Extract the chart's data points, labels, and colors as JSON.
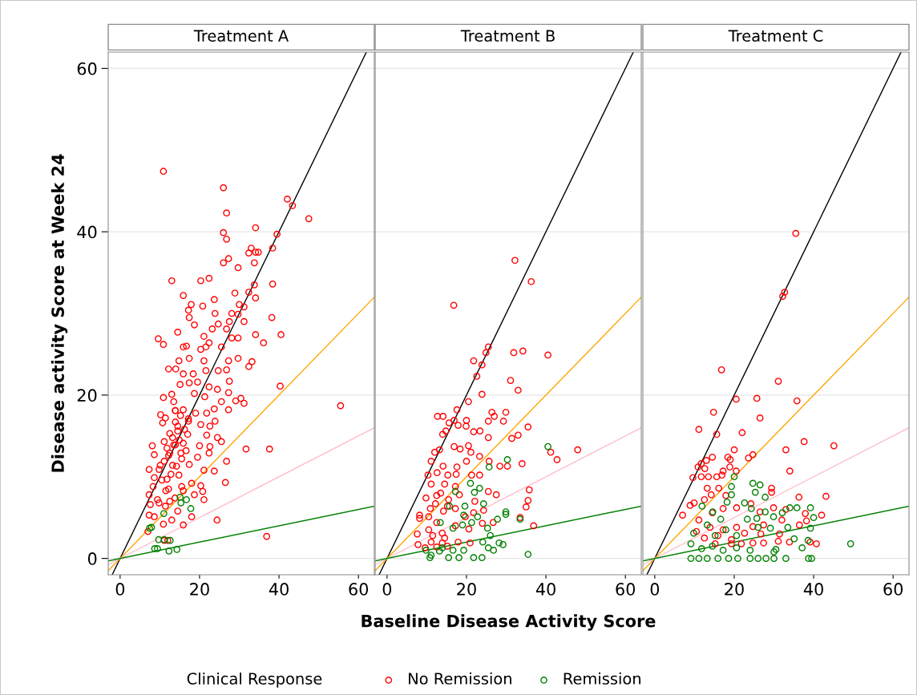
{
  "chart_data": [
    {
      "type": "scatter",
      "title": "Treatment A",
      "ylabel": "Disease activity Score at Week 24",
      "xlim": [
        -3,
        64
      ],
      "ylim": [
        -2,
        62
      ],
      "xticks": [
        0,
        20,
        40,
        60
      ],
      "yticks": [
        0,
        20,
        40,
        60
      ],
      "grid": "y",
      "marker": "circle",
      "legend": "bottom",
      "legend_title": "Clinical Response",
      "series": [
        {
          "name": "No Remission",
          "color": "#ff0000",
          "x": [
            10.9,
            26.0,
            42.1,
            43.4,
            47.5,
            26.8,
            34.1,
            26.0,
            26.8,
            39.5,
            38.4,
            33,
            32.4,
            34.1,
            34.8,
            26,
            27.3,
            33.8,
            29.7,
            13.0,
            20.3,
            22.4,
            33.8,
            38.4,
            15.9,
            28.9,
            32.4,
            34.1,
            23.7,
            17.9,
            20.8,
            17.2,
            17.4,
            30,
            31.2,
            29.7,
            23.9,
            28.1,
            27.5,
            31.2,
            38.2,
            18.7,
            23.2,
            24.7,
            26.8,
            14.5,
            34.1,
            40.5,
            9.6,
            10.9,
            21.1,
            28.1,
            29.7,
            36.1,
            15.9,
            16.7,
            20.3,
            21.6,
            22.4,
            25.5,
            14.8,
            17.4,
            21.1,
            27.3,
            29.7,
            33.2,
            32.4,
            12.2,
            14,
            15.9,
            18.4,
            21.6,
            24.7,
            26.8,
            15.1,
            17.4,
            19.5,
            22.4,
            24.5,
            27.5,
            40.3,
            10.9,
            13.0,
            13.5,
            18.7,
            21.3,
            25.5,
            27.3,
            29.1,
            30.4,
            31.2,
            55.5,
            27.3,
            10.2,
            11.4,
            13.9,
            15.9,
            19,
            21.8,
            23.7,
            10.7,
            13.9,
            17.2,
            20.3,
            22.6,
            23.9,
            12.5,
            14.5,
            17,
            21.8,
            24.5,
            8.1,
            11.1,
            13.5,
            15.9,
            20,
            22.6,
            25.5,
            31.7,
            37.6,
            8.6,
            12.2,
            15.3,
            19.5,
            22.4,
            7.3,
            10.1,
            13.2,
            17.4,
            21.1,
            26.8,
            23.7,
            8.6,
            11.8,
            14.8,
            18,
            26.5,
            8.3,
            12.2,
            15.5,
            20.3,
            7.3,
            9.4,
            13.8,
            18.7,
            20.8,
            21.1,
            7.6,
            9.8,
            11.4,
            14.5,
            18,
            7.3,
            8.6,
            10.9,
            13,
            15.9,
            7.0,
            24.4,
            36.9,
            11.1,
            12,
            9.8,
            11.1,
            12.5,
            13.9,
            13.2,
            14.5,
            15.2,
            13.9,
            11.8,
            10.5,
            11.5,
            12.8,
            14.2,
            15.5,
            16.6,
            14.9,
            16.2,
            17.2,
            15.9,
            12.5
          ],
          "values": [
            47.4,
            45.4,
            44.0,
            43.2,
            41.6,
            42.3,
            40.5,
            39.9,
            39.1,
            39.7,
            38.0,
            38,
            37.4,
            37.5,
            37.5,
            36.2,
            36.7,
            36.2,
            35.6,
            34.0,
            34.0,
            34.3,
            33.5,
            33.6,
            32.2,
            32.5,
            32.6,
            31.9,
            31.7,
            31.1,
            30.9,
            30.4,
            29.5,
            31.1,
            30.8,
            29.9,
            30.0,
            30.0,
            29.0,
            29.0,
            29.5,
            28.6,
            28.1,
            28.7,
            28.1,
            27.7,
            27.4,
            27.4,
            26.9,
            26.2,
            27.2,
            27.0,
            27.0,
            26.4,
            25.9,
            26.0,
            25.6,
            25.9,
            26.4,
            25.9,
            24.2,
            24.5,
            24.2,
            24.2,
            24.5,
            24.1,
            23.5,
            23.2,
            23.2,
            22.6,
            22.6,
            23.0,
            23.0,
            23.1,
            21.3,
            21.5,
            21.6,
            21.0,
            20.7,
            21.7,
            21.1,
            19.7,
            20.1,
            19.2,
            20.2,
            19.8,
            19.2,
            20.3,
            19.3,
            19.6,
            19.0,
            18.7,
            18.2,
            17.6,
            17.2,
            18.1,
            18.2,
            17.8,
            17.8,
            18.3,
            16.6,
            16.7,
            16.8,
            16.4,
            16.2,
            16.8,
            15.3,
            15.6,
            15.2,
            15.1,
            14.8,
            13.8,
            14.3,
            13.9,
            14.1,
            13.8,
            13.7,
            14.3,
            13.4,
            13.4,
            12.7,
            12.6,
            12.9,
            12.4,
            12.9,
            10.9,
            11.4,
            11.4,
            11.5,
            10.8,
            11.9,
            10.7,
            9.9,
            9.7,
            10.2,
            9.2,
            9.3,
            8.8,
            8.5,
            8.8,
            8.9,
            7.8,
            7.2,
            7.4,
            7.8,
            8.2,
            7.2,
            6.6,
            6.8,
            6.4,
            5.8,
            5.1,
            5.3,
            5.1,
            4.2,
            4.7,
            4.1,
            3.3,
            4.7,
            2.7,
            2.2,
            2.2,
            10.9,
            11.9,
            12.9,
            13.9,
            14.8,
            16.2,
            17.5,
            18.1,
            13.5,
            9.6,
            8.3,
            10.3,
            11.3,
            12.2,
            13.2,
            14.5,
            15.8,
            17.1,
            8.3,
            7.0
          ]
        },
        {
          "name": "Remission",
          "color": "#008000",
          "x": [
            7.4,
            7.9,
            11.0,
            15.1,
            15.3,
            16.7,
            17.8,
            9.7,
            11.1,
            12.6,
            8.7,
            9.4,
            12.3,
            14.3
          ],
          "values": [
            3.7,
            3.8,
            5.5,
            7.5,
            6.8,
            7.2,
            6.1,
            2.3,
            2.3,
            2.2,
            1.2,
            1.2,
            0.9,
            1.1
          ]
        },
        {
          "type": "line",
          "color": "#000000",
          "marker": "none",
          "x": [
            -2,
            62
          ],
          "values": [
            -2,
            62
          ]
        },
        {
          "type": "line",
          "color": "#ffa500",
          "marker": "none",
          "x": [
            -3,
            64
          ],
          "values": [
            -1.5,
            32
          ]
        },
        {
          "type": "line",
          "color": "#ffc0cb",
          "marker": "none",
          "x": [
            -3,
            64
          ],
          "values": [
            -0.75,
            16
          ]
        },
        {
          "type": "line",
          "color": "#008000",
          "marker": "none",
          "x": [
            -3,
            64
          ],
          "values": [
            -0.3,
            6.4
          ]
        }
      ]
    },
    {
      "type": "scatter",
      "title": "Treatment B",
      "xlabel": "Baseline Disease Activity Score",
      "xlim": [
        -3,
        64
      ],
      "ylim": [
        -2,
        62
      ],
      "xticks": [
        0,
        20,
        40,
        60
      ],
      "yticks": [
        0,
        20,
        40,
        60
      ],
      "tick_labels": "x",
      "grid": "y",
      "marker": "circle",
      "series": [
        {
          "color": "#ff0000",
          "x": [
            32.2,
            36.3,
            16.8,
            25.5,
            24.9,
            31.9,
            34.2,
            40.5,
            21.8,
            23.9,
            22.6,
            31.1,
            33,
            23.9,
            20.5,
            17.6,
            26.4,
            29.9,
            27,
            12.7,
            14.1,
            15.6,
            16.9,
            20,
            17.9,
            19.9,
            25.5,
            29.3,
            35.5,
            14.8,
            14,
            21.8,
            23.4,
            25.5,
            31.4,
            33,
            12,
            13.2,
            16.9,
            18.4,
            20.5,
            21.1,
            23.3,
            41.2,
            42.8,
            48,
            25.7,
            28.4,
            30.3,
            34,
            11.1,
            14.1,
            17.6,
            20,
            10.3,
            12.6,
            15.3,
            17.4,
            23.3,
            11.1,
            14.5,
            17.2,
            21.3,
            35.8,
            35.5,
            35,
            9.8,
            12.5,
            15.5,
            18.2,
            22.1,
            25.5,
            27.5,
            8.2,
            8.2,
            10.9,
            14.2,
            17.2,
            19.7,
            21.8,
            24.3,
            33.5,
            36.9,
            7.6,
            10.5,
            13.9,
            17.2,
            20.6,
            24,
            26.7,
            7.8,
            11.1,
            13.9,
            17.9,
            20.9,
            9.6,
            12.5,
            15.2,
            10.5,
            12.2,
            13.5,
            15.2,
            12.5,
            11.5,
            14.5
          ],
          "values": [
            36.5,
            33.9,
            31.0,
            25.9,
            25.2,
            25.2,
            25.4,
            24.9,
            24.2,
            23.7,
            22.3,
            21.8,
            20.6,
            20.1,
            19.2,
            18.2,
            17.9,
            17.9,
            17.4,
            17.4,
            17.4,
            16.6,
            16.9,
            16.9,
            16.3,
            16.2,
            16.8,
            16.8,
            16.1,
            15.6,
            15.2,
            15.5,
            15.6,
            14.8,
            14.7,
            15.1,
            13,
            13.3,
            13.7,
            13.4,
            13.8,
            13,
            12.5,
            13,
            12.1,
            13.3,
            11.9,
            11.3,
            11.3,
            11.6,
            11.9,
            11.3,
            11.2,
            11.9,
            10.2,
            10.5,
            10.2,
            10.3,
            10.2,
            9.1,
            9.1,
            8.8,
            10.2,
            8.4,
            7.1,
            6.3,
            7.4,
            7.7,
            7.2,
            7.8,
            7,
            8.2,
            7.8,
            5.3,
            4.9,
            6.1,
            5.8,
            6.1,
            5.1,
            5.6,
            5.9,
            5,
            4,
            3,
            3.5,
            3.1,
            4,
            3.6,
            4.3,
            4.4,
            1.7,
            2,
            1.9,
            2,
            1.9,
            1.3,
            1.4,
            1.5,
            5.1,
            6.7,
            8,
            6.4,
            4.4,
            2.8,
            2.5
          ]
        },
        {
          "color": "#008000",
          "x": [
            40.5,
            30.3,
            25.7,
            21,
            23.3,
            22,
            17.2,
            15.7,
            19.6,
            24.3,
            29.9,
            29.9,
            27.8,
            33.5,
            13.4,
            19.3,
            21.3,
            22.8,
            16.6,
            19,
            25.3,
            26,
            24.1,
            25.5,
            26.8,
            28.2,
            29.2,
            9.8,
            11.1,
            13.2,
            15.5,
            18.1,
            21.8,
            23.9,
            35.5,
            19.3,
            16.6,
            13.9,
            10.8
          ],
          "values": [
            13.7,
            12.1,
            11.2,
            9.2,
            8.6,
            8.1,
            8.2,
            6.4,
            6.4,
            6.7,
            5.7,
            5.4,
            4.8,
            4.8,
            4.4,
            5.3,
            4.4,
            5.1,
            3.7,
            4.1,
            3.7,
            2.8,
            2,
            1.3,
            1,
            1.9,
            1.7,
            1,
            0.4,
            0.9,
            0.1,
            0.1,
            0.1,
            0.1,
            0.5,
            1,
            1,
            1.3,
            0.1
          ]
        },
        {
          "type": "line",
          "color": "#000000",
          "marker": "none",
          "x": [
            -2,
            62
          ],
          "values": [
            -2,
            62
          ]
        },
        {
          "type": "line",
          "color": "#ffa500",
          "marker": "none",
          "x": [
            -3,
            64
          ],
          "values": [
            -1.5,
            32
          ]
        },
        {
          "type": "line",
          "color": "#ffc0cb",
          "marker": "none",
          "x": [
            -3,
            64
          ],
          "values": [
            -0.75,
            16
          ]
        },
        {
          "type": "line",
          "color": "#008000",
          "marker": "none",
          "x": [
            -3,
            64
          ],
          "values": [
            -0.3,
            6.4
          ]
        }
      ]
    },
    {
      "type": "scatter",
      "title": "Treatment C",
      "xlim": [
        -3,
        64
      ],
      "ylim": [
        -2,
        62
      ],
      "xticks": [
        0,
        20,
        40,
        60
      ],
      "yticks": [
        0,
        20,
        40,
        60
      ],
      "tick_labels": "x",
      "grid": "y",
      "marker": "circle",
      "series": [
        {
          "color": "#ff0000",
          "x": [
            35.5,
            32.7,
            32.2,
            16.8,
            31.1,
            20.5,
            25.7,
            35.8,
            14.8,
            26.5,
            11.1,
            15.6,
            22,
            37.6,
            45.1,
            33,
            20,
            24.7,
            23.6,
            11.7,
            13,
            14.5,
            18.4,
            19,
            10.9,
            12.6,
            18.9,
            17.2,
            20.5,
            9.6,
            11.7,
            13.5,
            15.6,
            16.9,
            34,
            13.2,
            16.1,
            29.4,
            29.4,
            36.3,
            43.1,
            8.9,
            9.9,
            12.5,
            14.2,
            17.9,
            7,
            11.1,
            14.5,
            17.2,
            20.6,
            24.2,
            26.5,
            29.9,
            33,
            37.9,
            42,
            32,
            36.4,
            38.2,
            10.5,
            13.9,
            17.2,
            20.6,
            24.7,
            27.4,
            12.5,
            15.9,
            19.3,
            22.6,
            26.7,
            31.4,
            24.7,
            27.4,
            31.1,
            33.9,
            39.1,
            40.7,
            15.2,
            19.3,
            21.8
          ],
          "values": [
            39.8,
            32.6,
            32.1,
            23.1,
            21.7,
            19.5,
            19.6,
            19.3,
            17.9,
            17.2,
            15.8,
            15.2,
            15.4,
            14.3,
            13.8,
            13.3,
            13.3,
            12.7,
            12.3,
            11.6,
            12,
            12.4,
            12.4,
            12.1,
            11.2,
            11,
            11.2,
            10.7,
            10.7,
            9.9,
            10,
            10,
            10,
            10.2,
            10.7,
            8.6,
            8.6,
            8.6,
            8.1,
            7.5,
            7.6,
            6.5,
            6.8,
            7.2,
            7.8,
            7.7,
            5.3,
            4.7,
            5.6,
            6.1,
            6.2,
            6.7,
            5.7,
            6.2,
            6,
            5.5,
            5.3,
            4.7,
            4.1,
            4.6,
            3.3,
            3.8,
            3.5,
            3.8,
            3.9,
            4.1,
            2.5,
            2.8,
            2.3,
            3.1,
            3,
            3,
            1.9,
            1.9,
            2.1,
            2,
            2,
            1.8,
            1.8,
            1.8,
            1.8
          ]
        },
        {
          "color": "#008000",
          "x": [
            20,
            24.7,
            26.5,
            19.3,
            25.3,
            27.8,
            19.3,
            18.2,
            22.6,
            24.3,
            34,
            35.8,
            39.2,
            27.8,
            29.9,
            32.1,
            40,
            25.7,
            29.1,
            33.5,
            39.2,
            35.1,
            37.1,
            38.6,
            49.3,
            9.8,
            13.2,
            16.6,
            14.6,
            11.9,
            9.1,
            11.8,
            14.5,
            17.2,
            20.6,
            24,
            9.1,
            11.1,
            13.2,
            15.9,
            18.6,
            20.9,
            24,
            26,
            28,
            30,
            33,
            38.7,
            39.5,
            30,
            30.5,
            15.2,
            17.9,
            20.6,
            23.3,
            26
          ],
          "values": [
            10,
            9.2,
            9,
            8.8,
            8.1,
            7.5,
            7.8,
            6.9,
            6.8,
            6.1,
            6.2,
            6.2,
            6.2,
            5.7,
            5.1,
            5.6,
            5,
            4.9,
            3.7,
            3.8,
            3.7,
            2.4,
            1.3,
            2.2,
            1.8,
            3.1,
            4.1,
            4.8,
            5.7,
            6.4,
            1.8,
            1.2,
            1.5,
            1,
            1.3,
            1,
            0,
            0,
            0,
            0,
            0,
            0,
            0,
            0,
            0,
            0,
            0,
            0,
            0,
            0.8,
            1.1,
            2.8,
            3.5,
            2.8,
            4.8,
            3.8
          ]
        },
        {
          "type": "line",
          "color": "#000000",
          "marker": "none",
          "x": [
            -2,
            62
          ],
          "values": [
            -2,
            62
          ]
        },
        {
          "type": "line",
          "color": "#ffa500",
          "marker": "none",
          "x": [
            -3,
            64
          ],
          "values": [
            -1.5,
            32
          ]
        },
        {
          "type": "line",
          "color": "#ffc0cb",
          "marker": "none",
          "x": [
            -3,
            64
          ],
          "values": [
            -0.75,
            16
          ]
        },
        {
          "type": "line",
          "color": "#008000",
          "marker": "none",
          "x": [
            -3,
            64
          ],
          "values": [
            -0.3,
            6.4
          ]
        }
      ]
    }
  ]
}
